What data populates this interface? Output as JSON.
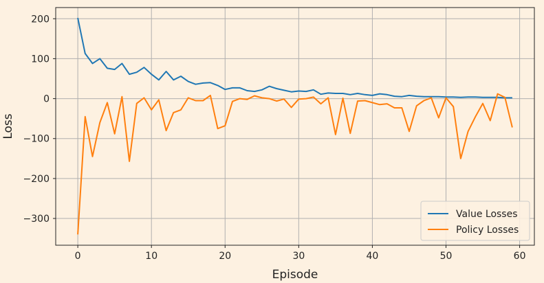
{
  "chart_data": {
    "type": "line",
    "title": "",
    "xlabel": "Episode",
    "ylabel": "Loss",
    "xlim": [
      -3,
      62
    ],
    "ylim": [
      -367,
      228
    ],
    "xticks": [
      0,
      10,
      20,
      30,
      40,
      50,
      60
    ],
    "yticks": [
      200,
      100,
      0,
      -100,
      -200,
      -300
    ],
    "ytick_labels": [
      "200",
      "100",
      "0",
      "−100",
      "−200",
      "−300"
    ],
    "grid": true,
    "legend_position": "lower-right",
    "x": [
      0,
      1,
      2,
      3,
      4,
      5,
      6,
      7,
      8,
      9,
      10,
      11,
      12,
      13,
      14,
      15,
      16,
      17,
      18,
      19,
      20,
      21,
      22,
      23,
      24,
      25,
      26,
      27,
      28,
      29,
      30,
      31,
      32,
      33,
      34,
      35,
      36,
      37,
      38,
      39,
      40,
      41,
      42,
      43,
      44,
      45,
      46,
      47,
      48,
      49,
      50,
      51,
      52,
      53,
      54,
      55,
      56,
      57,
      58,
      59
    ],
    "series": [
      {
        "name": "Value Losses",
        "color": "#1f77b4",
        "values": [
          202,
          113,
          88,
          100,
          76,
          73,
          88,
          61,
          66,
          78,
          61,
          47,
          68,
          47,
          56,
          43,
          36,
          39,
          40,
          33,
          23,
          27,
          27,
          20,
          18,
          22,
          31,
          25,
          21,
          17,
          19,
          18,
          22,
          11,
          14,
          13,
          13,
          10,
          13,
          10,
          8,
          12,
          10,
          6,
          5,
          8,
          6,
          5,
          5,
          5,
          4,
          4,
          3,
          4,
          4,
          3,
          3,
          3,
          2,
          2
        ]
      },
      {
        "name": "Policy Losses",
        "color": "#ff7f0e",
        "values": [
          -340,
          -45,
          -145,
          -60,
          -10,
          -88,
          5,
          -157,
          -12,
          2,
          -28,
          -3,
          -80,
          -35,
          -28,
          2,
          -5,
          -5,
          8,
          -75,
          -68,
          -7,
          0,
          -2,
          7,
          2,
          0,
          -6,
          -1,
          -22,
          -1,
          0,
          4,
          -13,
          2,
          -90,
          1,
          -87,
          -6,
          -5,
          -10,
          -15,
          -13,
          -23,
          -23,
          -82,
          -18,
          -5,
          2,
          -48,
          2,
          -20,
          -150,
          -82,
          -45,
          -12,
          -55,
          12,
          3,
          -72
        ]
      }
    ]
  }
}
